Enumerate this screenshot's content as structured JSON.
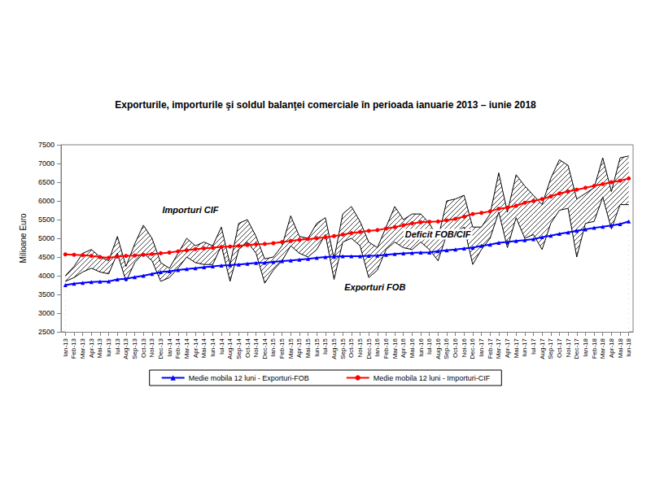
{
  "chart_data": {
    "type": "line",
    "title": "Exporturile, importurile şi soldul balanţei comerciale în perioada ianuarie 2013 – iunie 2018",
    "y_label": "Milioane Euro",
    "categories": [
      "Ian-13",
      "Feb-13",
      "Mar-13",
      "Apr-13",
      "Mai-13",
      "Iun-13",
      "Iul-13",
      "Aug-13",
      "Sep-13",
      "Oct-13",
      "Noi-13",
      "Dec-13",
      "Ian-14",
      "Feb-14",
      "Mar-14",
      "Apr-14",
      "Mai-14",
      "Iun-14",
      "Iul-14",
      "Aug-14",
      "Sep-14",
      "Oct-14",
      "Noi-14",
      "Dec-14",
      "Ian-15",
      "Feb-15",
      "Mar-15",
      "Apr-15",
      "Mai-15",
      "Iun-15",
      "Iul-15",
      "Aug-15",
      "Sep-15",
      "Oct-15",
      "Noi-15",
      "Dec-15",
      "Ian-16",
      "Feb-16",
      "Mar-16",
      "Apr-16",
      "Mai-16",
      "Iun-16",
      "Iul-16",
      "Aug-16",
      "Sep-16",
      "Oct-16",
      "Noi-16",
      "Dec-16",
      "Ian-17",
      "Feb-17",
      "Mar-17",
      "Apr-17",
      "Mai-17",
      "Iun-17",
      "Iul-17",
      "Aug-17",
      "Sep-17",
      "Oct-17",
      "Noi-17",
      "Dec-17",
      "Ian-18",
      "Feb-18",
      "Mar-18",
      "Apr-18",
      "Mai-18",
      "Iun-18"
    ],
    "series": [
      {
        "name": "Importuri CIF",
        "type": "area",
        "color": "#000000",
        "marker": "none",
        "values": [
          4000,
          4250,
          4600,
          4700,
          4500,
          4400,
          5050,
          4250,
          4850,
          5350,
          5000,
          4350,
          4200,
          4600,
          5000,
          4800,
          4900,
          4800,
          5300,
          4300,
          5400,
          5500,
          5050,
          4450,
          4500,
          4800,
          5600,
          5050,
          5000,
          5400,
          5550,
          4450,
          5650,
          5850,
          5450,
          4900,
          4750,
          5300,
          5850,
          5500,
          5650,
          5650,
          5400,
          5000,
          6000,
          6050,
          6150,
          5300,
          5300,
          5650,
          6750,
          5700,
          6700,
          6400,
          6150,
          5900,
          6600,
          7100,
          6950,
          6050,
          6200,
          6350,
          7150,
          6250,
          7150,
          7200
        ]
      },
      {
        "name": "Exporturi FOB",
        "type": "area",
        "color": "#000000",
        "marker": "none",
        "values": [
          3850,
          3950,
          4100,
          4200,
          4100,
          4050,
          4600,
          3850,
          4350,
          4600,
          4400,
          3850,
          3950,
          4200,
          4500,
          4350,
          4300,
          4300,
          4800,
          3850,
          4700,
          4900,
          4600,
          3800,
          4150,
          4400,
          4800,
          4600,
          4500,
          4700,
          5100,
          3900,
          4900,
          5000,
          4800,
          3950,
          4150,
          4700,
          4900,
          4750,
          4700,
          4900,
          4700,
          4400,
          5100,
          5150,
          5300,
          4300,
          4700,
          5000,
          5700,
          4750,
          5550,
          5000,
          5100,
          4700,
          5400,
          5750,
          5800,
          4500,
          5400,
          5450,
          6100,
          5250,
          5900,
          5900
        ]
      },
      {
        "name": "Medie mobila 12 luni - Exporturi-FOB",
        "type": "line",
        "color": "#0000ff",
        "marker": "triangle",
        "values": [
          3750,
          3790,
          3810,
          3830,
          3840,
          3850,
          3900,
          3920,
          3960,
          4000,
          4050,
          4100,
          4120,
          4150,
          4180,
          4200,
          4230,
          4250,
          4270,
          4280,
          4300,
          4320,
          4340,
          4350,
          4370,
          4390,
          4410,
          4430,
          4450,
          4480,
          4500,
          4510,
          4520,
          4520,
          4520,
          4530,
          4540,
          4560,
          4580,
          4600,
          4610,
          4620,
          4620,
          4660,
          4680,
          4700,
          4730,
          4750,
          4800,
          4830,
          4880,
          4900,
          4930,
          4950,
          4980,
          5030,
          5070,
          5120,
          5160,
          5200,
          5240,
          5280,
          5310,
          5340,
          5380,
          5450
        ]
      },
      {
        "name": "Medie mobila 12 luni - Importuri-CIF",
        "type": "line",
        "color": "#ff0000",
        "marker": "circle",
        "values": [
          4570,
          4560,
          4550,
          4530,
          4500,
          4480,
          4510,
          4530,
          4540,
          4560,
          4580,
          4600,
          4620,
          4650,
          4680,
          4710,
          4730,
          4750,
          4770,
          4780,
          4800,
          4820,
          4840,
          4850,
          4870,
          4900,
          4930,
          4960,
          4980,
          5000,
          5030,
          5060,
          5100,
          5140,
          5170,
          5200,
          5220,
          5260,
          5300,
          5350,
          5400,
          5430,
          5440,
          5450,
          5480,
          5520,
          5580,
          5650,
          5680,
          5720,
          5790,
          5820,
          5870,
          5950,
          6000,
          6050,
          6120,
          6200,
          6250,
          6300,
          6350,
          6400,
          6450,
          6500,
          6540,
          6600
        ]
      }
    ],
    "ylim": [
      2500,
      7500
    ],
    "yticks": [
      2500,
      3000,
      3500,
      4000,
      4500,
      5000,
      5500,
      6000,
      6500,
      7000,
      7500
    ],
    "grid": false,
    "legend": "bottom",
    "annotations": [
      {
        "text": "Importuri CIF",
        "x": "Dec-13",
        "y": 5760
      },
      {
        "text": "Deficit FOB/CIF",
        "x": "Apr-16",
        "y": 5110
      },
      {
        "text": "Exporturi FOB",
        "x": "Sep-15",
        "y": 3700
      }
    ]
  }
}
